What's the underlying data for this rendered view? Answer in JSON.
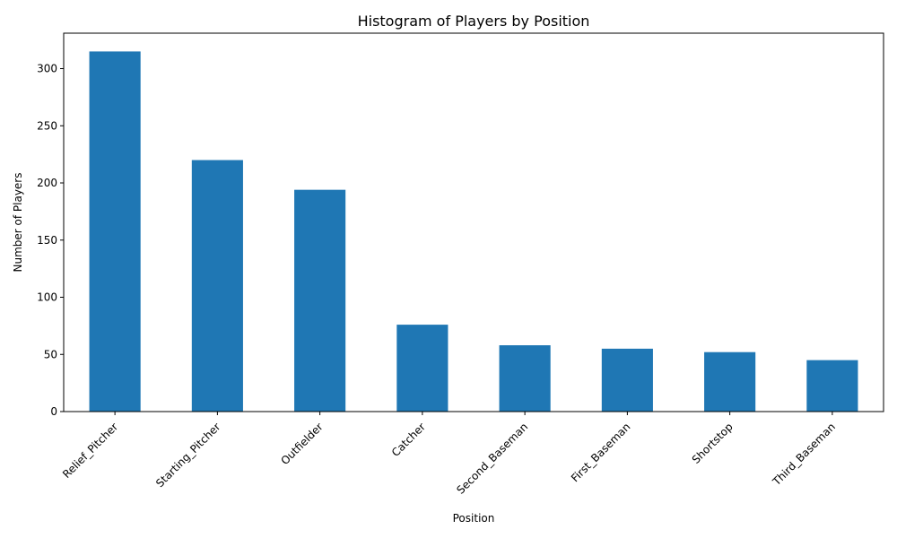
{
  "chart_data": {
    "type": "bar",
    "title": "Histogram of Players by Position",
    "xlabel": "Position",
    "ylabel": "Number of Players",
    "categories": [
      "Relief_Pitcher",
      "Starting_Pitcher",
      "Outfielder",
      "Catcher",
      "Second_Baseman",
      "First_Baseman",
      "Shortstop",
      "Third_Baseman"
    ],
    "values": [
      315,
      220,
      194,
      76,
      58,
      55,
      52,
      45
    ],
    "ylim": [
      0,
      331
    ],
    "yticks": [
      0,
      50,
      100,
      150,
      200,
      250,
      300
    ],
    "bar_color": "#1f77b4",
    "grid": false,
    "legend": "none"
  }
}
